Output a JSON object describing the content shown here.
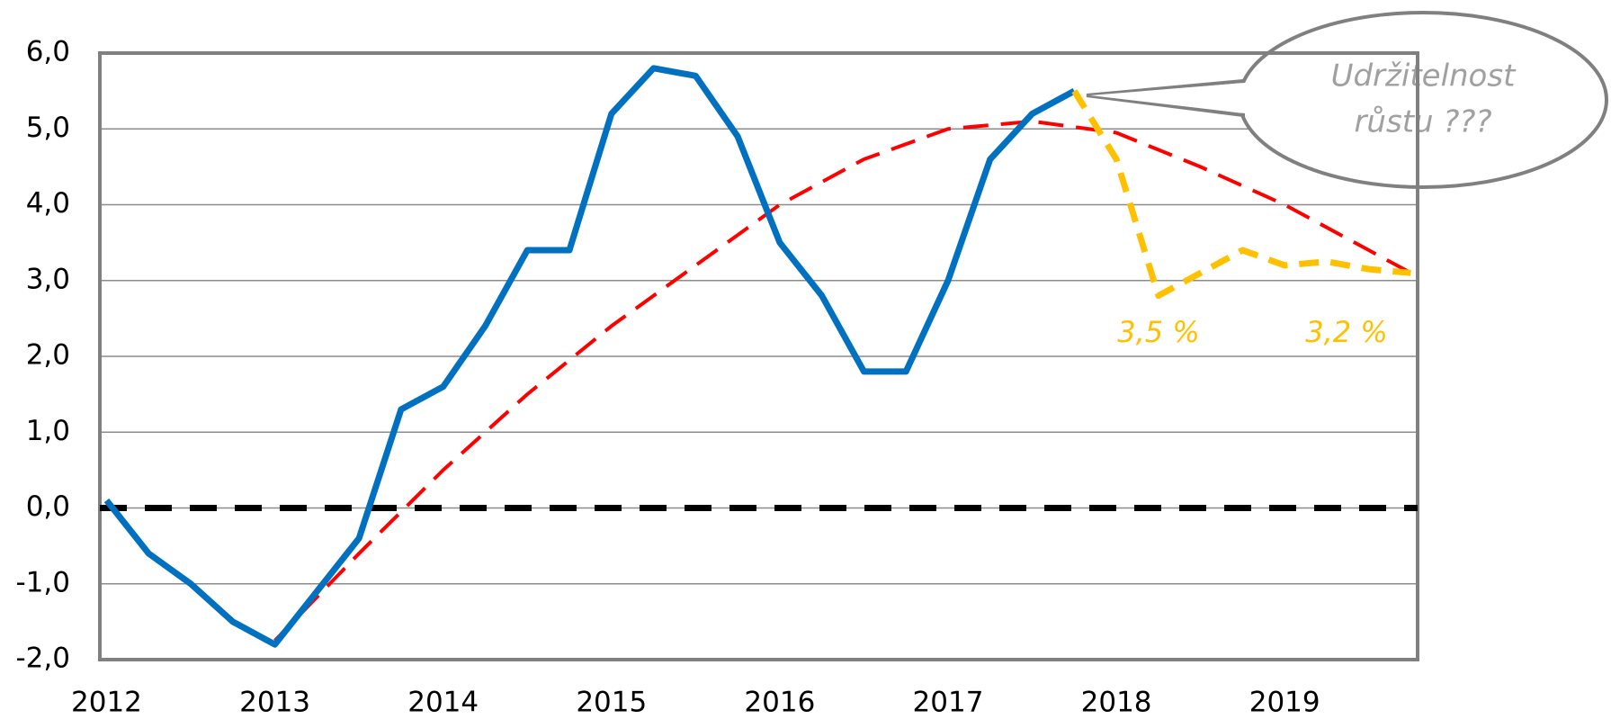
{
  "chart_data": {
    "type": "line",
    "xlim": [
      2011.96,
      2019.79
    ],
    "xticks": [
      2012,
      2013,
      2014,
      2015,
      2016,
      2017,
      2018,
      2019
    ],
    "ylim": [
      -2,
      6
    ],
    "yticks": [
      {
        "value": -2,
        "label": "-2,0"
      },
      {
        "value": -1,
        "label": "-1,0"
      },
      {
        "value": 0,
        "label": "0,0"
      },
      {
        "value": 1,
        "label": "1,0"
      },
      {
        "value": 2,
        "label": "2,0"
      },
      {
        "value": 3,
        "label": "3,0"
      },
      {
        "value": 4,
        "label": "4,0"
      },
      {
        "value": 5,
        "label": "5,0"
      },
      {
        "value": 6,
        "label": "6,0"
      }
    ],
    "grid": true,
    "hlines": [
      {
        "value": 0,
        "color": "#000000"
      }
    ],
    "series": [
      {
        "color": "#0070c0",
        "style": "solid",
        "x": [
          2012,
          2012.25,
          2012.5,
          2012.75,
          2013,
          2013.25,
          2013.5,
          2013.75,
          2014,
          2014.25,
          2014.5,
          2014.75,
          2015,
          2015.25,
          2015.5,
          2015.75,
          2016,
          2016.25,
          2016.5,
          2016.75,
          2017,
          2017.25,
          2017.5,
          2017.75
        ],
        "values": [
          0.1,
          -0.6,
          -1.0,
          -1.5,
          -1.8,
          -1.1,
          -0.4,
          1.3,
          1.6,
          2.4,
          3.4,
          3.4,
          5.2,
          5.8,
          5.7,
          4.9,
          3.5,
          2.8,
          1.8,
          1.8,
          3.0,
          4.6,
          5.2,
          5.5
        ]
      },
      {
        "color": "#ff0000",
        "style": "dashed",
        "x": [
          2013,
          2013.5,
          2014,
          2014.5,
          2015,
          2015.5,
          2016,
          2016.5,
          2017,
          2017.5,
          2018,
          2018.5,
          2019,
          2019.5,
          2019.75
        ],
        "values": [
          -1.75,
          -0.6,
          0.5,
          1.5,
          2.4,
          3.2,
          4.0,
          4.6,
          5.0,
          5.1,
          4.95,
          4.5,
          4.0,
          3.4,
          3.1
        ]
      },
      {
        "color": "#ffc000",
        "style": "dashed",
        "x": [
          2017.75,
          2018,
          2018.25,
          2018.5,
          2018.75,
          2019,
          2019.25,
          2019.5,
          2019.75
        ],
        "values": [
          5.5,
          4.6,
          2.8,
          3.1,
          3.4,
          3.2,
          3.25,
          3.15,
          3.1
        ]
      }
    ],
    "annotations": [
      "3,5 %",
      "3,2 %"
    ],
    "callout": [
      "Udržitelnost",
      "růstu ???"
    ]
  }
}
